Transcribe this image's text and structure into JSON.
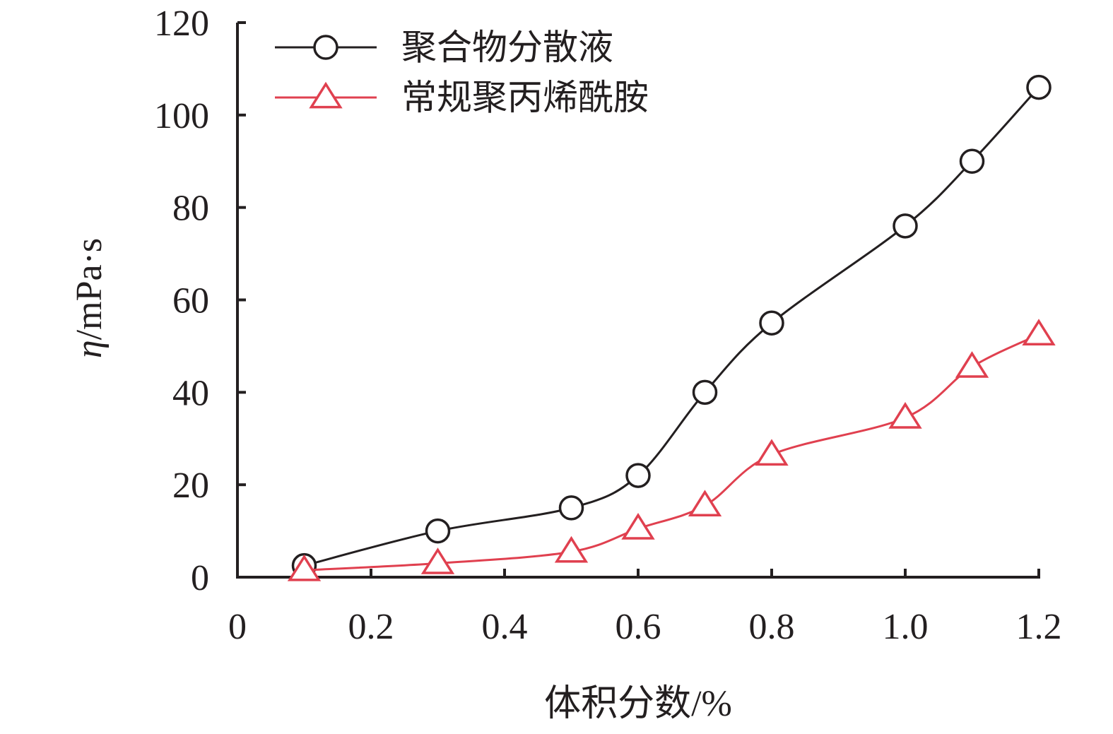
{
  "chart_data": {
    "type": "line",
    "title": "",
    "xlabel": "体积分数/%",
    "ylabel": "η/mPa·s",
    "ylabel_parts": {
      "symbol": "η",
      "unit": "/mPa·s"
    },
    "xlim": [
      0,
      1.2
    ],
    "ylim": [
      0,
      120
    ],
    "x_ticks": [
      0,
      0.2,
      0.4,
      0.6,
      0.8,
      1.0,
      1.2
    ],
    "x_tick_labels": [
      "0",
      "0.2",
      "0.4",
      "0.6",
      "0.8",
      "1.0",
      "1.2"
    ],
    "y_ticks": [
      0,
      20,
      40,
      60,
      80,
      100,
      120
    ],
    "y_tick_labels": [
      "0",
      "20",
      "40",
      "60",
      "80",
      "100",
      "120"
    ],
    "grid": false,
    "legend_position": "top-left",
    "series": [
      {
        "name": "聚合物分散液",
        "marker": "circle",
        "color": "#231f20",
        "x": [
          0.1,
          0.3,
          0.5,
          0.6,
          0.7,
          0.8,
          1.0,
          1.1,
          1.2
        ],
        "y": [
          2.5,
          10,
          15,
          22,
          40,
          55,
          76,
          90,
          106
        ]
      },
      {
        "name": "常规聚丙烯酰胺",
        "marker": "triangle",
        "color": "#e0404f",
        "x": [
          0.1,
          0.3,
          0.5,
          0.6,
          0.7,
          0.8,
          1.0,
          1.1,
          1.2
        ],
        "y": [
          1.5,
          3,
          5.5,
          10.5,
          15.5,
          26.5,
          34.5,
          45.5,
          52.5
        ]
      }
    ]
  }
}
